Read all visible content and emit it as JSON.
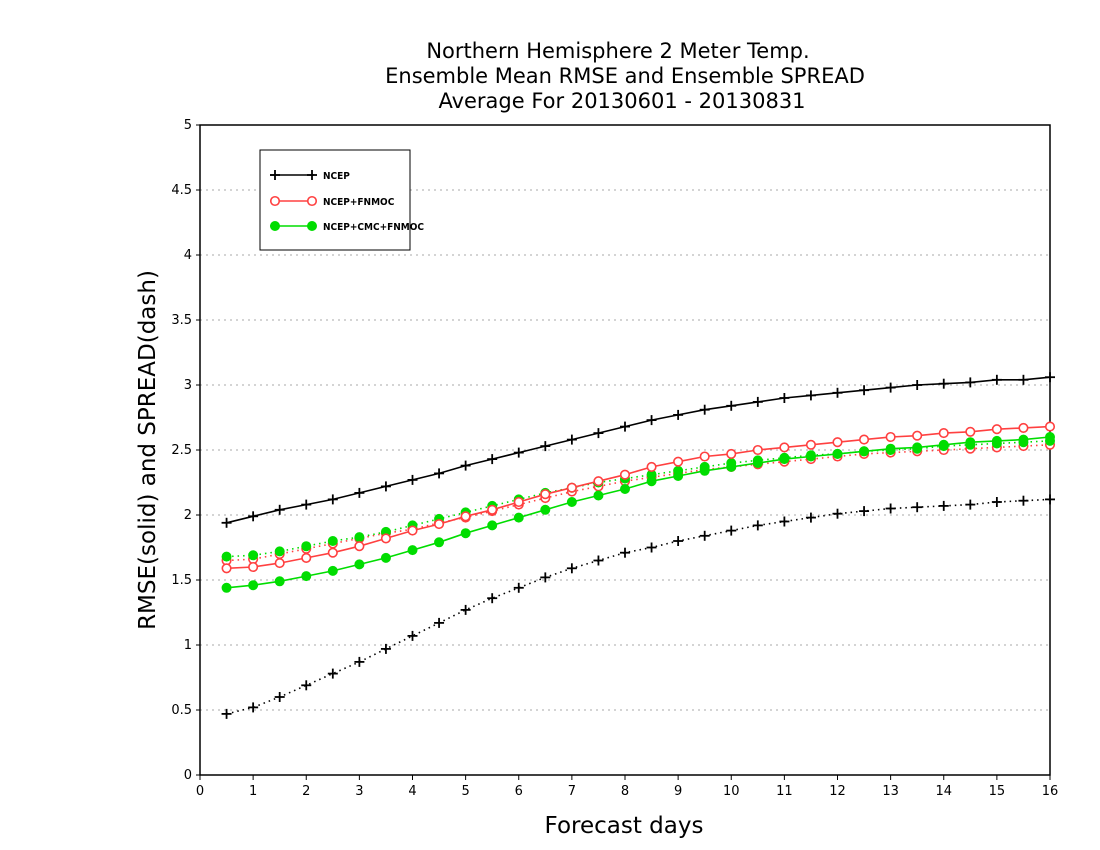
{
  "chart_data": {
    "type": "line",
    "title": [
      "Northern Hemisphere 2 Meter Temp.",
      "Ensemble Mean RMSE and Ensemble SPREAD",
      "Average For 20130601 - 20130831"
    ],
    "xlabel": "Forecast days",
    "ylabel": "RMSE(solid) and SPREAD(dash)",
    "xlim": [
      0,
      16
    ],
    "ylim": [
      0,
      5
    ],
    "xticks": [
      "0",
      "1",
      "2",
      "3",
      "4",
      "5",
      "6",
      "7",
      "8",
      "9",
      "10",
      "11",
      "12",
      "13",
      "14",
      "15",
      "16"
    ],
    "yticks": [
      "0",
      "0.5",
      "1",
      "1.5",
      "2",
      "2.5",
      "3",
      "3.5",
      "4",
      "4.5",
      "5"
    ],
    "grid": "horizontal dotted",
    "legend_position": "top-left",
    "x": [
      0.5,
      1,
      1.5,
      2,
      2.5,
      3,
      3.5,
      4,
      4.5,
      5,
      5.5,
      6,
      6.5,
      7,
      7.5,
      8,
      8.5,
      9,
      9.5,
      10,
      10.5,
      11,
      11.5,
      12,
      12.5,
      13,
      13.5,
      14,
      14.5,
      15,
      15.5,
      16
    ],
    "series": [
      {
        "name": "NCEP",
        "color": "#000000",
        "marker": "plus",
        "rmse": [
          1.94,
          1.99,
          2.04,
          2.08,
          2.12,
          2.17,
          2.22,
          2.27,
          2.32,
          2.38,
          2.43,
          2.48,
          2.53,
          2.58,
          2.63,
          2.68,
          2.73,
          2.77,
          2.81,
          2.84,
          2.87,
          2.9,
          2.92,
          2.94,
          2.96,
          2.98,
          3.0,
          3.01,
          3.02,
          3.04,
          3.04,
          3.06
        ],
        "spread": [
          0.47,
          0.52,
          0.6,
          0.69,
          0.78,
          0.87,
          0.97,
          1.07,
          1.17,
          1.27,
          1.36,
          1.44,
          1.52,
          1.59,
          1.65,
          1.71,
          1.75,
          1.8,
          1.84,
          1.88,
          1.92,
          1.95,
          1.98,
          2.01,
          2.03,
          2.05,
          2.06,
          2.07,
          2.08,
          2.1,
          2.11,
          2.12
        ]
      },
      {
        "name": "NCEP+FNMOC",
        "color": "#ff4040",
        "marker": "open-circle",
        "rmse": [
          1.59,
          1.6,
          1.63,
          1.67,
          1.71,
          1.76,
          1.82,
          1.88,
          1.93,
          1.99,
          2.04,
          2.1,
          2.16,
          2.21,
          2.26,
          2.31,
          2.37,
          2.41,
          2.45,
          2.47,
          2.5,
          2.52,
          2.54,
          2.56,
          2.58,
          2.6,
          2.61,
          2.63,
          2.64,
          2.66,
          2.67,
          2.68
        ],
        "spread": [
          1.65,
          1.66,
          1.7,
          1.74,
          1.78,
          1.82,
          1.86,
          1.89,
          1.94,
          1.98,
          2.03,
          2.08,
          2.13,
          2.18,
          2.22,
          2.26,
          2.29,
          2.32,
          2.35,
          2.37,
          2.39,
          2.41,
          2.43,
          2.45,
          2.47,
          2.48,
          2.49,
          2.5,
          2.51,
          2.52,
          2.53,
          2.54
        ]
      },
      {
        "name": "NCEP+CMC+FNMOC",
        "color": "#00dd00",
        "marker": "filled-circle",
        "rmse": [
          1.44,
          1.46,
          1.49,
          1.53,
          1.57,
          1.62,
          1.67,
          1.73,
          1.79,
          1.86,
          1.92,
          1.98,
          2.04,
          2.1,
          2.15,
          2.2,
          2.26,
          2.3,
          2.34,
          2.37,
          2.4,
          2.43,
          2.45,
          2.47,
          2.49,
          2.51,
          2.52,
          2.54,
          2.56,
          2.57,
          2.58,
          2.6
        ],
        "spread": [
          1.68,
          1.69,
          1.72,
          1.76,
          1.8,
          1.83,
          1.87,
          1.92,
          1.97,
          2.02,
          2.07,
          2.12,
          2.17,
          2.21,
          2.25,
          2.28,
          2.31,
          2.34,
          2.37,
          2.4,
          2.42,
          2.44,
          2.46,
          2.47,
          2.49,
          2.5,
          2.51,
          2.53,
          2.54,
          2.55,
          2.56,
          2.57
        ]
      }
    ]
  }
}
